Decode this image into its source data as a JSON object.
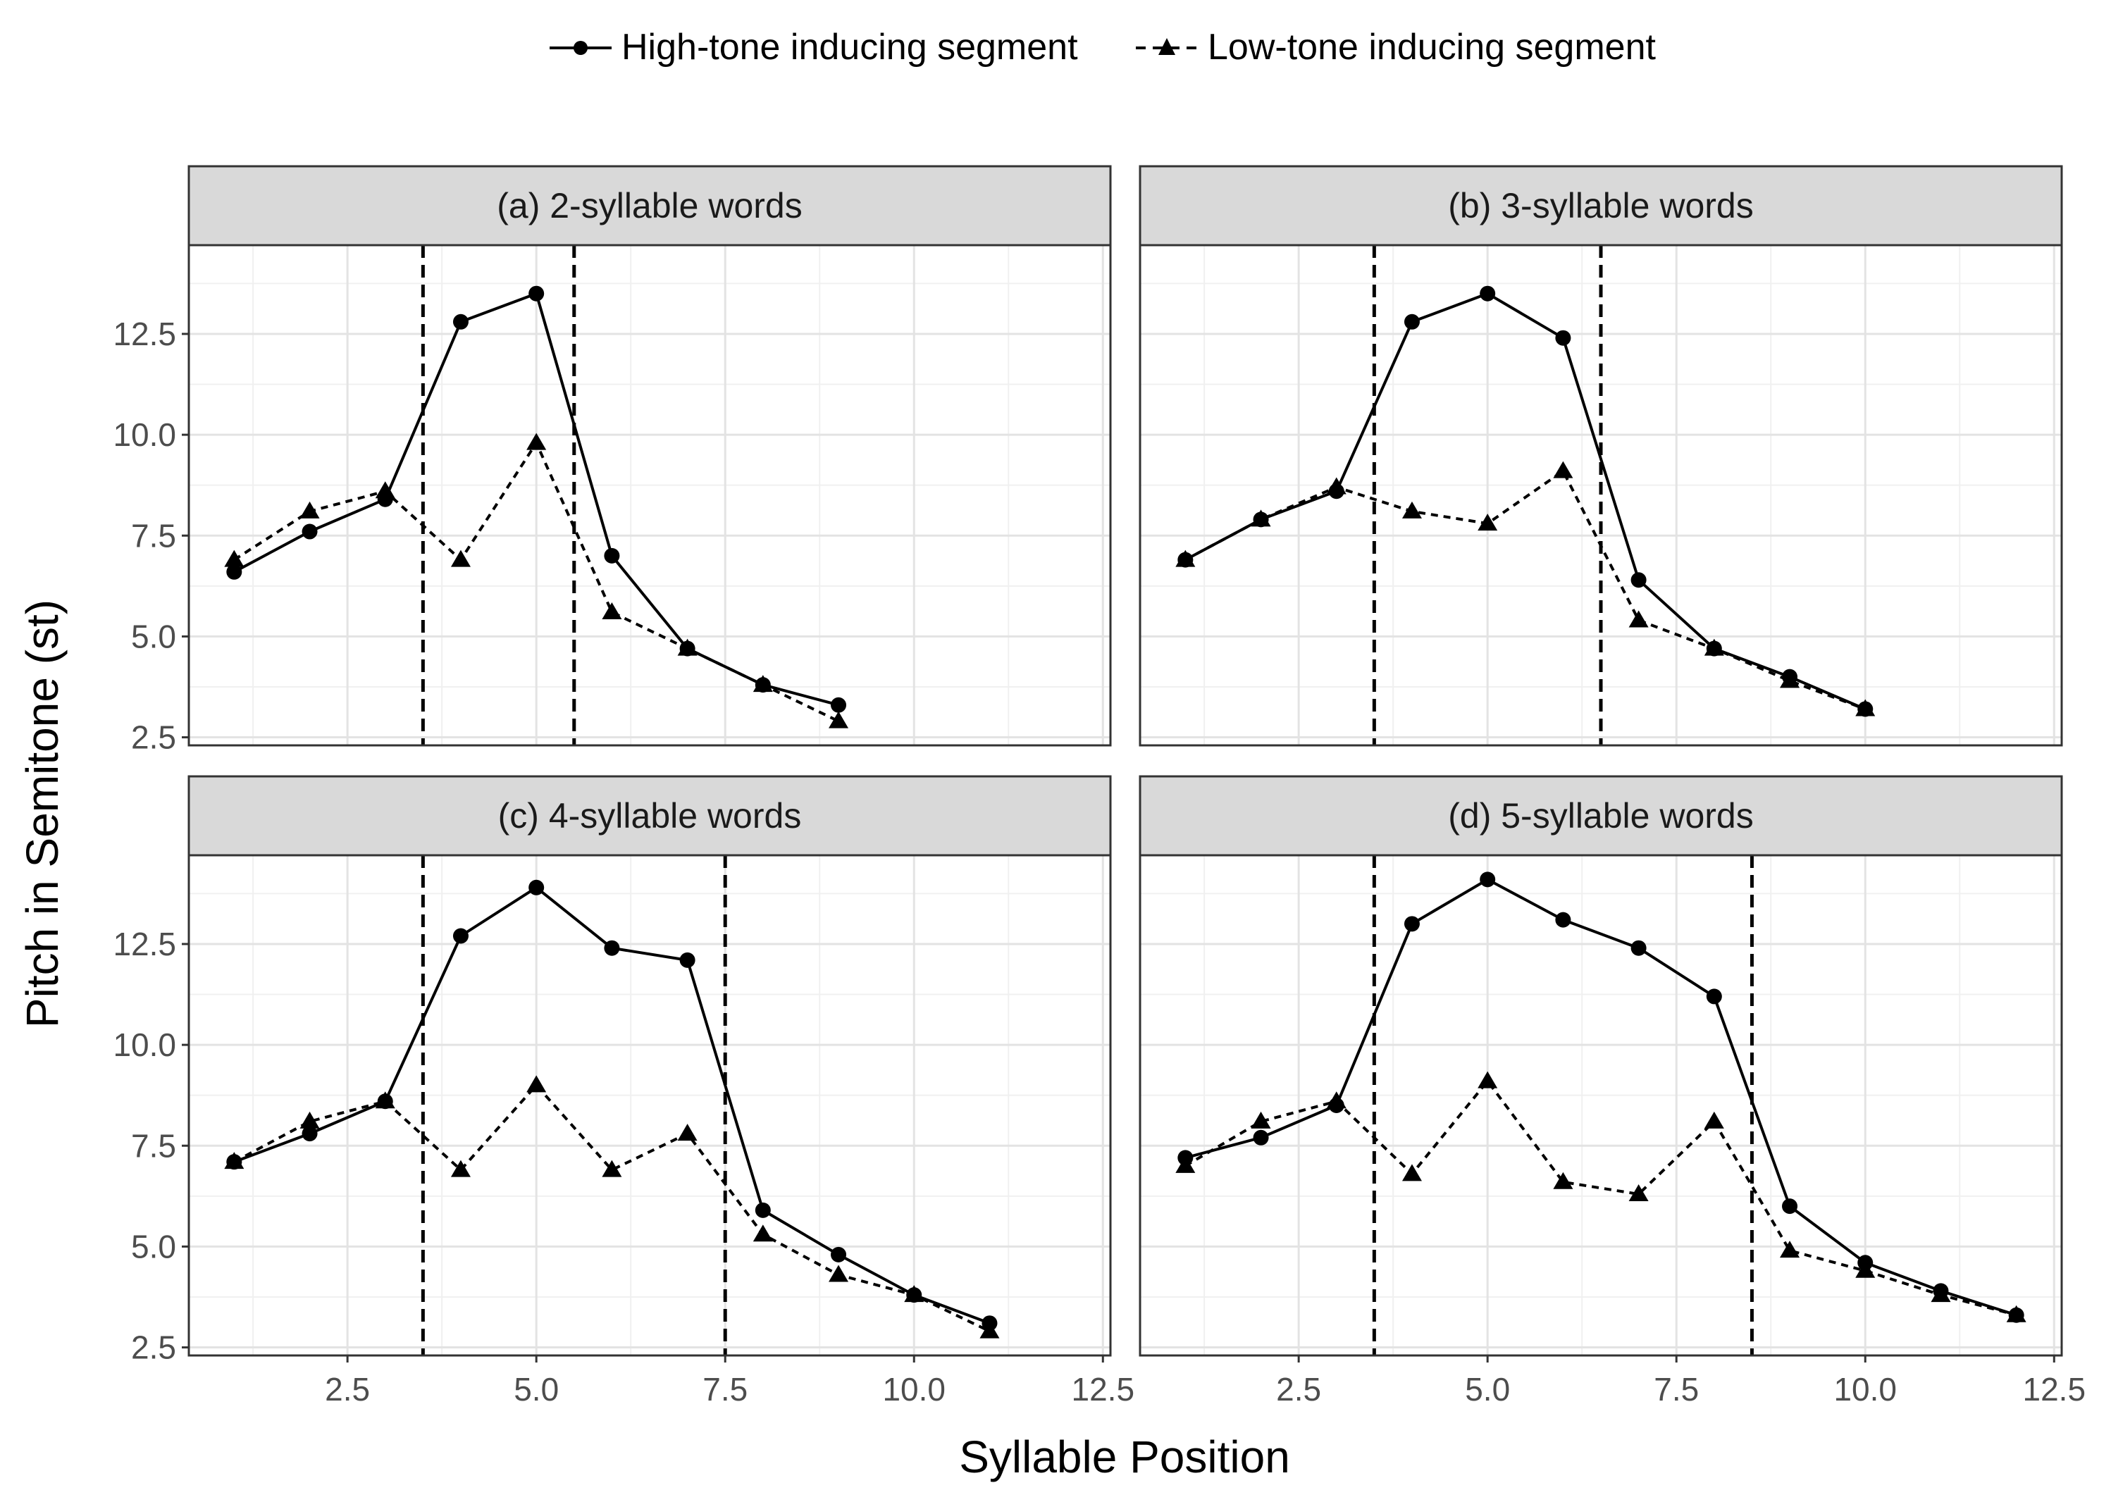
{
  "chart_data": {
    "type": "line",
    "xlabel": "Syllable Position",
    "ylabel": "Pitch in Semitone (st)",
    "xlim": [
      0.4,
      12.6
    ],
    "ylim": [
      2.3,
      14.7
    ],
    "x_ticks": [
      2.5,
      5.0,
      7.5,
      10.0,
      12.5
    ],
    "x_tick_labels": [
      "2.5",
      "5.0",
      "7.5",
      "10.0",
      "12.5"
    ],
    "y_ticks": [
      2.5,
      5.0,
      7.5,
      10.0,
      12.5
    ],
    "y_tick_labels": [
      "2.5",
      "5.0",
      "7.5",
      "10.0",
      "12.5"
    ],
    "grid": true,
    "legend": {
      "position": "top",
      "entries": [
        {
          "label": "High-tone inducing segment",
          "line": "solid",
          "marker": "circle"
        },
        {
          "label": "Low-tone inducing segment",
          "line": "dashed",
          "marker": "triangle"
        }
      ]
    },
    "panels": [
      {
        "title": "(a) 2-syllable words",
        "vlines": [
          3.5,
          5.5
        ],
        "series": [
          {
            "name": "High-tone inducing segment",
            "x": [
              1,
              2,
              3,
              4,
              5,
              6,
              7,
              8,
              9
            ],
            "y": [
              6.6,
              7.6,
              8.4,
              12.8,
              13.5,
              7.0,
              4.7,
              3.8,
              3.3
            ]
          },
          {
            "name": "Low-tone inducing segment",
            "x": [
              1,
              2,
              3,
              4,
              5,
              6,
              7,
              8,
              9
            ],
            "y": [
              6.9,
              8.1,
              8.6,
              6.9,
              9.8,
              5.6,
              4.7,
              3.8,
              2.9
            ]
          }
        ]
      },
      {
        "title": "(b) 3-syllable words",
        "vlines": [
          3.5,
          6.5
        ],
        "series": [
          {
            "name": "High-tone inducing segment",
            "x": [
              1,
              2,
              3,
              4,
              5,
              6,
              7,
              8,
              9,
              10
            ],
            "y": [
              6.9,
              7.9,
              8.6,
              12.8,
              13.5,
              12.4,
              6.4,
              4.7,
              4.0,
              3.2
            ]
          },
          {
            "name": "Low-tone inducing segment",
            "x": [
              1,
              2,
              3,
              4,
              5,
              6,
              7,
              8,
              9,
              10
            ],
            "y": [
              6.9,
              7.9,
              8.7,
              8.1,
              7.8,
              9.1,
              5.4,
              4.7,
              3.9,
              3.2
            ]
          }
        ]
      },
      {
        "title": "(c) 4-syllable words",
        "vlines": [
          3.5,
          7.5
        ],
        "series": [
          {
            "name": "High-tone inducing segment",
            "x": [
              1,
              2,
              3,
              4,
              5,
              6,
              7,
              8,
              9,
              10,
              11
            ],
            "y": [
              7.1,
              7.8,
              8.6,
              12.7,
              13.9,
              12.4,
              12.1,
              5.9,
              4.8,
              3.8,
              3.1
            ]
          },
          {
            "name": "Low-tone inducing segment",
            "x": [
              1,
              2,
              3,
              4,
              5,
              6,
              7,
              8,
              9,
              10,
              11
            ],
            "y": [
              7.1,
              8.1,
              8.6,
              6.9,
              9.0,
              6.9,
              7.8,
              5.3,
              4.3,
              3.8,
              2.9
            ]
          }
        ]
      },
      {
        "title": "(d) 5-syllable words",
        "vlines": [
          3.5,
          8.5
        ],
        "series": [
          {
            "name": "High-tone inducing segment",
            "x": [
              1,
              2,
              3,
              4,
              5,
              6,
              7,
              8,
              9,
              10,
              11,
              12
            ],
            "y": [
              7.2,
              7.7,
              8.5,
              13.0,
              14.1,
              13.1,
              12.4,
              11.2,
              6.0,
              4.6,
              3.9,
              3.3
            ]
          },
          {
            "name": "Low-tone inducing segment",
            "x": [
              1,
              2,
              3,
              4,
              5,
              6,
              7,
              8,
              9,
              10,
              11,
              12
            ],
            "y": [
              7.0,
              8.1,
              8.6,
              6.8,
              9.1,
              6.6,
              6.3,
              8.1,
              4.9,
              4.4,
              3.8,
              3.3
            ]
          }
        ]
      }
    ]
  }
}
